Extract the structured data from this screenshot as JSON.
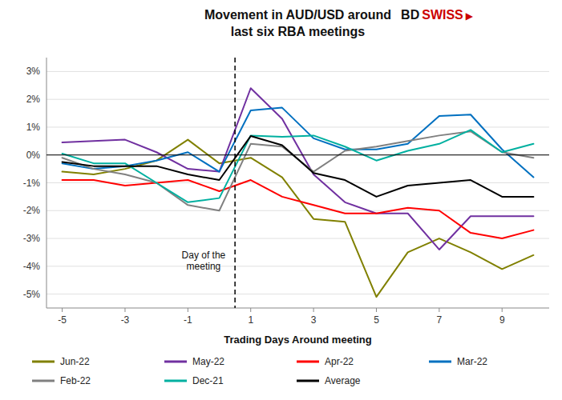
{
  "chart_data": {
    "type": "line",
    "title": "Movement in AUD/USD around\nlast six RBA meetings",
    "x_label": "Trading Days Around meeting",
    "x": [
      -5,
      -4,
      -3,
      -2,
      -1,
      0,
      1,
      2,
      3,
      4,
      5,
      6,
      7,
      8,
      9,
      10
    ],
    "series": [
      {
        "name": "Jun-22",
        "color": "#808000",
        "values": [
          -0.6,
          -0.7,
          -0.5,
          -0.2,
          0.55,
          -0.3,
          -0.1,
          -0.8,
          -2.3,
          -2.4,
          -5.1,
          -3.5,
          -3.0,
          -3.5,
          -4.1,
          -3.6
        ]
      },
      {
        "name": "May-22",
        "color": "#7030A0",
        "values": [
          0.45,
          0.5,
          0.55,
          0.1,
          -0.5,
          -0.6,
          2.4,
          1.3,
          -0.7,
          -1.7,
          -2.1,
          -2.1,
          -3.4,
          -2.2,
          -2.2,
          -2.2
        ]
      },
      {
        "name": "Apr-22",
        "color": "#FF0000",
        "values": [
          -0.9,
          -0.9,
          -1.1,
          -1.0,
          -0.9,
          -1.3,
          -0.9,
          -1.5,
          -1.8,
          -2.1,
          -2.1,
          -1.9,
          -2.0,
          -2.8,
          -3.0,
          -2.7
        ]
      },
      {
        "name": "Mar-22",
        "color": "#0070C0",
        "values": [
          -0.3,
          -0.5,
          -0.4,
          -0.2,
          0.1,
          -0.6,
          1.6,
          1.7,
          0.6,
          0.2,
          0.2,
          0.4,
          1.4,
          1.45,
          0.2,
          -0.8
        ]
      },
      {
        "name": "Feb-22",
        "color": "#808080",
        "values": [
          -0.1,
          -0.5,
          -0.7,
          -1.0,
          -1.8,
          -2.0,
          0.4,
          0.3,
          -0.6,
          0.15,
          0.3,
          0.5,
          0.7,
          0.85,
          0.1,
          -0.1
        ]
      },
      {
        "name": "Dec-21",
        "color": "#00B0A0",
        "values": [
          0.05,
          -0.3,
          -0.3,
          -1.0,
          -1.7,
          -1.55,
          0.7,
          0.65,
          0.7,
          0.3,
          -0.2,
          0.15,
          0.4,
          0.9,
          0.1,
          0.4
        ]
      },
      {
        "name": "Average",
        "color": "#000000",
        "values": [
          -0.25,
          -0.4,
          -0.4,
          -0.4,
          -0.7,
          -0.9,
          0.68,
          0.35,
          -0.65,
          -0.9,
          -1.5,
          -1.1,
          -1.0,
          -0.9,
          -1.5,
          -1.5
        ]
      }
    ],
    "annotations": [
      {
        "text": "Day of the\nmeeting",
        "x": -0.5,
        "y": -3.8
      },
      {
        "text": "BD"
      },
      {
        "text": "SWISS",
        "color": "#CC0000"
      },
      {
        "text": "▶",
        "color": "#CC0000"
      }
    ],
    "reference_lines": [
      {
        "x": 0.5,
        "line_style": "dashed"
      },
      {
        "y": 0,
        "line_style": "solid"
      }
    ],
    "xlim": [
      -5.5,
      10.5
    ],
    "xticks": [
      -5,
      -3,
      -1,
      1,
      3,
      5,
      7,
      9
    ],
    "ylim": [
      -5.5,
      3.5
    ],
    "yticks": [
      {
        "value": -5,
        "label": "-5%"
      },
      {
        "value": -4,
        "label": "-4%"
      },
      {
        "value": -3,
        "label": "-3%"
      },
      {
        "value": -2,
        "label": "-2%"
      },
      {
        "value": -1,
        "label": "-1%"
      },
      {
        "value": 0,
        "label": "0%"
      },
      {
        "value": 1,
        "label": "1%"
      },
      {
        "value": 2,
        "label": "2%"
      },
      {
        "value": 3,
        "label": "3%"
      }
    ],
    "grid": true,
    "legend": "bottom"
  }
}
